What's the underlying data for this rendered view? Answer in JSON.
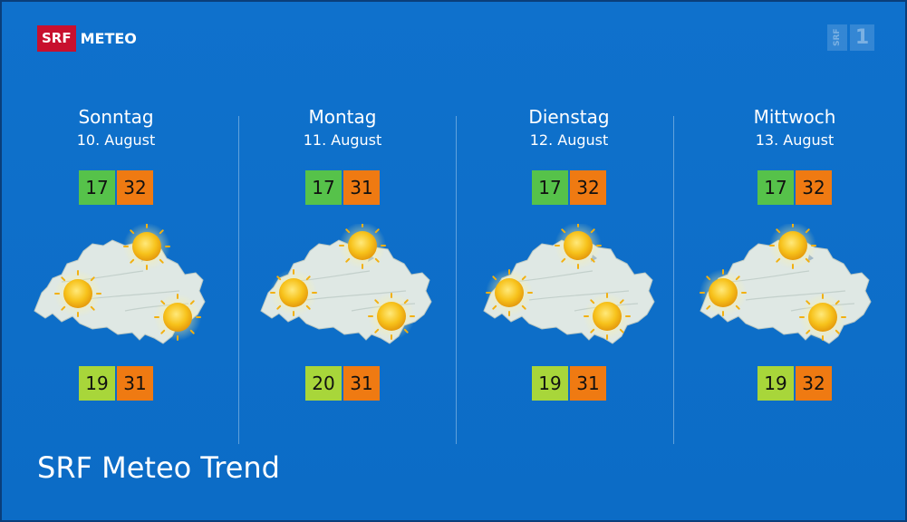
{
  "brand": {
    "logo_box": "SRF",
    "logo_text": "METEO",
    "channel_srf": "SRF",
    "channel_num": "1"
  },
  "colors": {
    "background": "#0e6fc9",
    "min_temp_green": "#56c24a",
    "min_temp_lime": "#a8d63a",
    "max_temp_orange": "#ef7a12",
    "sun": "#f5c21a",
    "map": "#dfe8e4"
  },
  "days": [
    {
      "name": "Sonntag",
      "date": "10. August",
      "top_min": "17",
      "top_max": "32",
      "bottom_min": "19",
      "bottom_max": "31",
      "icons": [
        "sun-icon",
        "sun-icon",
        "sun-icon"
      ]
    },
    {
      "name": "Montag",
      "date": "11. August",
      "top_min": "17",
      "top_max": "31",
      "bottom_min": "20",
      "bottom_max": "31",
      "icons": [
        "sun-icon",
        "sun-icon",
        "sun-icon"
      ]
    },
    {
      "name": "Dienstag",
      "date": "12. August",
      "top_min": "17",
      "top_max": "32",
      "bottom_min": "19",
      "bottom_max": "31",
      "icons": [
        "sun-icon",
        "sun-icon",
        "sun-icon"
      ]
    },
    {
      "name": "Mittwoch",
      "date": "13. August",
      "top_min": "17",
      "top_max": "32",
      "bottom_min": "19",
      "bottom_max": "32",
      "icons": [
        "sun-icon",
        "sun-icon",
        "sun-icon"
      ]
    }
  ],
  "footer": {
    "title": "SRF Meteo Trend"
  }
}
